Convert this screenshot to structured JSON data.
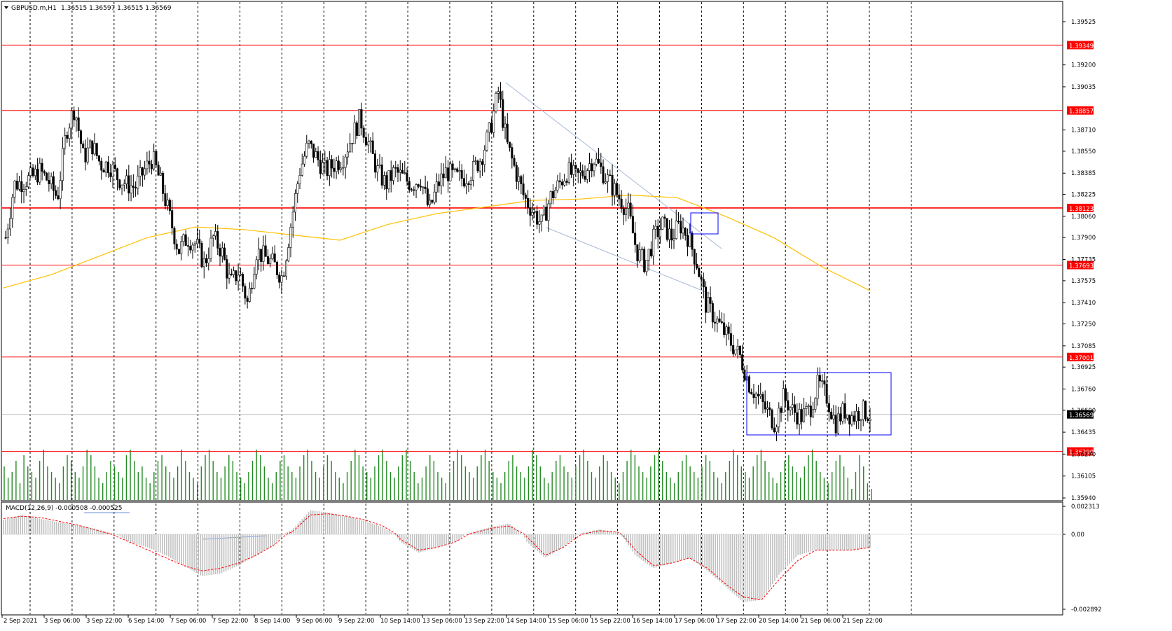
{
  "header": {
    "symbol": "GBPUSD.m,H1",
    "ohlc": "1.36515 1.36597 1.36515 1.36569"
  },
  "macd_label": {
    "text": "MACD(12,26,9) -0.000508 -0.000525"
  },
  "colors": {
    "background": "#ffffff",
    "grid": "#000000",
    "candle_up": "#ffffff",
    "candle_down": "#000000",
    "candle_outline": "#000000",
    "level_line": "#ff0000",
    "level_label_bg": "#ff0000",
    "current_label_bg": "#000000",
    "current_line": "#c0c0c0",
    "ma": "#ffc000",
    "trendline": "#a9b9d8",
    "rectangle": "#0000ff",
    "volume": "#228b22",
    "macd_hist": "#c0c0c0",
    "macd_signal": "#ff0000"
  },
  "chart_data": [
    {
      "type": "candlestick",
      "symbol": "GBPUSD.m",
      "timeframe": "H1",
      "ylim": [
        1.3594,
        1.3961
      ],
      "y_ticks": [
        "1.39525",
        "1.39200",
        "1.39035",
        "1.38710",
        "1.38550",
        "1.38385",
        "1.38225",
        "1.38060",
        "1.37900",
        "1.37735",
        "1.37575",
        "1.37410",
        "1.37250",
        "1.37085",
        "1.36925",
        "1.36760",
        "1.36600",
        "1.36435",
        "1.36270",
        "1.36105",
        "1.35940"
      ],
      "x_labels": [
        "2 Sep 2021",
        "3 Sep 06:00",
        "3 Sep 22:00",
        "6 Sep 14:00",
        "7 Sep 06:00",
        "7 Sep 22:00",
        "8 Sep 14:00",
        "9 Sep 06:00",
        "9 Sep 22:00",
        "10 Sep 14:00",
        "13 Sep 06:00",
        "13 Sep 22:00",
        "14 Sep 14:00",
        "15 Sep 06:00",
        "15 Sep 22:00",
        "16 Sep 14:00",
        "17 Sep 06:00",
        "17 Sep 22:00",
        "20 Sep 14:00",
        "21 Sep 06:00",
        "21 Sep 22:00"
      ],
      "horizontal_levels": [
        "1.39349",
        "1.38857",
        "1.38123",
        "1.37693",
        "1.37001",
        "1.36290"
      ],
      "current_price": "1.36569",
      "price_path": [
        1.379,
        1.383,
        1.3832,
        1.3835,
        1.384,
        1.3832,
        1.382,
        1.387,
        1.3888,
        1.385,
        1.386,
        1.3845,
        1.3845,
        1.3835,
        1.383,
        1.3828,
        1.384,
        1.385,
        1.383,
        1.3805,
        1.378,
        1.379,
        1.3785,
        1.377,
        1.379,
        1.378,
        1.3755,
        1.3765,
        1.374,
        1.378,
        1.3775,
        1.377,
        1.376,
        1.38,
        1.384,
        1.386,
        1.385,
        1.384,
        1.3845,
        1.385,
        1.3865,
        1.388,
        1.386,
        1.384,
        1.383,
        1.384,
        1.3835,
        1.383,
        1.3835,
        1.381,
        1.383,
        1.384,
        1.3835,
        1.3835,
        1.384,
        1.385,
        1.387,
        1.39,
        1.386,
        1.384,
        1.382,
        1.381,
        1.38,
        1.382,
        1.383,
        1.384,
        1.3835,
        1.384,
        1.385,
        1.384,
        1.383,
        1.382,
        1.381,
        1.378,
        1.377,
        1.379,
        1.38,
        1.379,
        1.38,
        1.379,
        1.377,
        1.374,
        1.373,
        1.372,
        1.371,
        1.37,
        1.368,
        1.367,
        1.366,
        1.365,
        1.367,
        1.366,
        1.3655,
        1.366,
        1.368,
        1.367,
        1.365,
        1.366,
        1.3655,
        1.366,
        1.3657
      ],
      "moving_average": [
        1.3752,
        1.3762,
        1.3776,
        1.379,
        1.3798,
        1.3796,
        1.3792,
        1.3788,
        1.38,
        1.3808,
        1.3813,
        1.3818,
        1.3819,
        1.3822,
        1.382,
        1.3806,
        1.379,
        1.3768,
        1.375
      ],
      "volume_bars": [
        6,
        4,
        5,
        7,
        3,
        8,
        6,
        5,
        4,
        7,
        9,
        6,
        5,
        4,
        3,
        6,
        8,
        7,
        5,
        4,
        6,
        9,
        8,
        6,
        4,
        3,
        5,
        7,
        6,
        5,
        4,
        8,
        9,
        7,
        5,
        6,
        4,
        3,
        5,
        7,
        8,
        6,
        5,
        4,
        6,
        9,
        7,
        5,
        4,
        3,
        6,
        8,
        9,
        7,
        5,
        4,
        6,
        8,
        7,
        5,
        4,
        3,
        5,
        7,
        9,
        8,
        6,
        4,
        3,
        5,
        7,
        8,
        6,
        5,
        4,
        6,
        8,
        9,
        7,
        5,
        4,
        6,
        8,
        7,
        5,
        4,
        3,
        5,
        7,
        9,
        8,
        6,
        5,
        4,
        6,
        8,
        9,
        7,
        5,
        4,
        6,
        8,
        9,
        7,
        5,
        3,
        4,
        6,
        8,
        7,
        5,
        4,
        3,
        5,
        7,
        9,
        8,
        6,
        5,
        4,
        6,
        8,
        9,
        7,
        5,
        4,
        3,
        5,
        7,
        8,
        6,
        5,
        4,
        6,
        9,
        8,
        6,
        4,
        3,
        5,
        7,
        8,
        6,
        5,
        4,
        6,
        8,
        9,
        7,
        5,
        4,
        6,
        8,
        7,
        5,
        4,
        3,
        5,
        7,
        9,
        8,
        6,
        5,
        4,
        6,
        8,
        9,
        7,
        5,
        4,
        3,
        5,
        7,
        8,
        6,
        5,
        4,
        6,
        8,
        7,
        5,
        4,
        3,
        5,
        7,
        9,
        8,
        6,
        5,
        4,
        6,
        8,
        9,
        7,
        5,
        4,
        3,
        5,
        7,
        8,
        6,
        5,
        4,
        6,
        8,
        9,
        7,
        5,
        4,
        3,
        5,
        7,
        8,
        6,
        4,
        2,
        5,
        8,
        6,
        3,
        2
      ]
    },
    {
      "type": "bar",
      "title": "MACD(12,26,9) -0.000508 -0.000525",
      "ylim": [
        -0.002892,
        0.002313
      ],
      "y_ticks": [
        "0.002313",
        "0.00",
        "-0.002892"
      ],
      "histogram_path": [
        0.0012,
        0.0016,
        0.0013,
        0.001,
        0.0008,
        0.0005,
        0.0001,
        -0.0003,
        -0.0005,
        -0.0008,
        -0.0012,
        -0.0016,
        -0.0015,
        -0.0012,
        -0.0008,
        -0.0004,
        0.0004,
        0.002,
        0.0018,
        0.0015,
        0.0011,
        0.0006,
        -0.0003,
        -0.0007,
        -0.0005,
        -0.0003,
        0.0002,
        0.0006,
        0.0009,
        -0.0003,
        -0.0009,
        -0.0005,
        0.0001,
        0.0004,
        0.0002,
        -0.0008,
        -0.0013,
        -0.0011,
        -0.0009,
        -0.0014,
        -0.002,
        -0.0026,
        -0.0025,
        -0.0015,
        -0.0008,
        -0.0006,
        -0.0006,
        -0.0006,
        -0.0005
      ],
      "signal_path": [
        0.0013,
        0.0015,
        0.0014,
        0.0011,
        0.0008,
        0.0004,
        0.0,
        -0.0003,
        -0.0006,
        -0.0009,
        -0.0012,
        -0.0014,
        -0.0013,
        -0.0011,
        -0.0008,
        -0.0004,
        0.0002,
        0.0016,
        0.0017,
        0.0015,
        0.0012,
        0.0007,
        -0.0002,
        -0.0006,
        -0.0005,
        -0.0003,
        0.0001,
        0.0005,
        0.0007,
        -0.0001,
        -0.0008,
        -0.0005,
        0.0,
        0.0003,
        0.0002,
        -0.0006,
        -0.0012,
        -0.0011,
        -0.0009,
        -0.0013,
        -0.0019,
        -0.0024,
        -0.0025,
        -0.0017,
        -0.001,
        -0.0006,
        -0.0006,
        -0.0006,
        -0.0005
      ]
    }
  ]
}
